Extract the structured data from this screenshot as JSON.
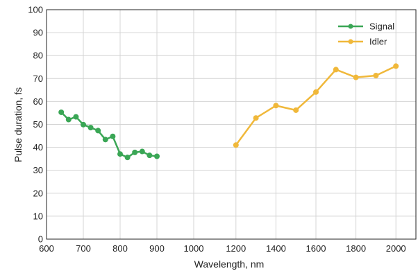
{
  "chart_data": {
    "type": "line",
    "title": "",
    "xlabel": "Wavelength, nm",
    "ylabel": "Pulse duration, fs",
    "xlim": [
      600,
      2100
    ],
    "ylim": [
      0,
      100
    ],
    "x_axis_break": {
      "left_segment": [
        600,
        1000
      ],
      "right_segment": [
        1100,
        2100
      ]
    },
    "x_ticks": [
      600,
      700,
      800,
      900,
      1000,
      1200,
      1400,
      1600,
      1800,
      2000
    ],
    "y_ticks": [
      0,
      10,
      20,
      30,
      40,
      50,
      60,
      70,
      80,
      90,
      100
    ],
    "grid": true,
    "legend_position": "top-right",
    "series": [
      {
        "name": "Signal",
        "color": "#3aa655",
        "x": [
          640,
          660,
          680,
          700,
          720,
          740,
          760,
          780,
          800,
          820,
          840,
          860,
          880,
          900
        ],
        "y": [
          55.3,
          52.1,
          53.3,
          49.9,
          48.6,
          47.3,
          43.4,
          44.8,
          37.1,
          35.6,
          37.8,
          38.2,
          36.5,
          36.1
        ]
      },
      {
        "name": "Idler",
        "color": "#f0b83a",
        "x": [
          1200,
          1300,
          1400,
          1500,
          1600,
          1700,
          1800,
          1900,
          2000
        ],
        "y": [
          41.0,
          52.8,
          58.2,
          56.2,
          64.1,
          73.9,
          70.5,
          71.3,
          75.4
        ]
      }
    ]
  }
}
